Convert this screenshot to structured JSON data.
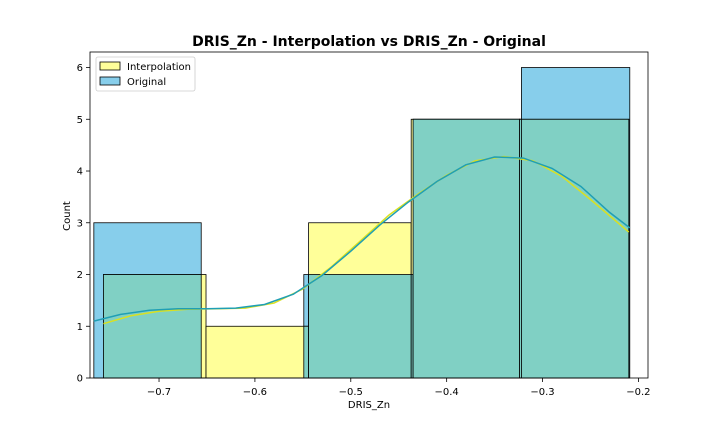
{
  "chart_data": {
    "type": "bar",
    "title": "DRIS_Zn - Interpolation vs DRIS_Zn - Original",
    "xlabel": "DRIS_Zn",
    "ylabel": "Count",
    "xlim": [
      -0.772,
      -0.19
    ],
    "ylim": [
      0,
      6.3
    ],
    "xticks": [
      -0.7,
      -0.6,
      -0.5,
      -0.4,
      -0.3,
      -0.2
    ],
    "xtick_labels": [
      "−0.7",
      "−0.6",
      "−0.5",
      "−0.4",
      "−0.3",
      "−0.2"
    ],
    "yticks": [
      0,
      1,
      2,
      3,
      4,
      5,
      6
    ],
    "ytick_labels": [
      "0",
      "1",
      "2",
      "3",
      "4",
      "5",
      "6"
    ],
    "grid": false,
    "legend_position": "top-left",
    "series": [
      {
        "name": "Interpolation",
        "color": "#ffff99",
        "kde_color": "#d9e021",
        "bins": [
          {
            "x0": -0.758,
            "x1": -0.651,
            "count": 2
          },
          {
            "x0": -0.651,
            "x1": -0.544,
            "count": 1
          },
          {
            "x0": -0.544,
            "x1": -0.437,
            "count": 3
          },
          {
            "x0": -0.437,
            "x1": -0.324,
            "count": 5
          },
          {
            "x0": -0.324,
            "x1": -0.21,
            "count": 5
          }
        ],
        "kde": {
          "x": [
            -0.758,
            -0.73,
            -0.7,
            -0.67,
            -0.64,
            -0.61,
            -0.58,
            -0.55,
            -0.52,
            -0.49,
            -0.46,
            -0.43,
            -0.4,
            -0.37,
            -0.34,
            -0.31,
            -0.28,
            -0.25,
            -0.21
          ],
          "y": [
            1.05,
            1.2,
            1.29,
            1.33,
            1.34,
            1.35,
            1.45,
            1.72,
            2.15,
            2.65,
            3.15,
            3.55,
            3.92,
            4.2,
            4.28,
            4.2,
            3.9,
            3.45,
            2.82
          ]
        }
      },
      {
        "name": "Original",
        "color": "#87ceeb",
        "kde_color": "#1f9fb5",
        "bins": [
          {
            "x0": -0.768,
            "x1": -0.656,
            "count": 3
          },
          {
            "x0": -0.656,
            "x1": -0.549,
            "count": 0
          },
          {
            "x0": -0.549,
            "x1": -0.435,
            "count": 2
          },
          {
            "x0": -0.435,
            "x1": -0.322,
            "count": 5
          },
          {
            "x0": -0.322,
            "x1": -0.209,
            "count": 6
          }
        ],
        "kde": {
          "x": [
            -0.768,
            -0.74,
            -0.71,
            -0.68,
            -0.65,
            -0.62,
            -0.59,
            -0.56,
            -0.53,
            -0.5,
            -0.47,
            -0.44,
            -0.41,
            -0.38,
            -0.35,
            -0.32,
            -0.29,
            -0.26,
            -0.23,
            -0.209
          ],
          "y": [
            1.1,
            1.23,
            1.31,
            1.34,
            1.34,
            1.35,
            1.42,
            1.62,
            1.98,
            2.45,
            2.95,
            3.4,
            3.8,
            4.12,
            4.27,
            4.25,
            4.05,
            3.7,
            3.2,
            2.9
          ]
        }
      }
    ],
    "overlap_color": "#80d0c4"
  }
}
